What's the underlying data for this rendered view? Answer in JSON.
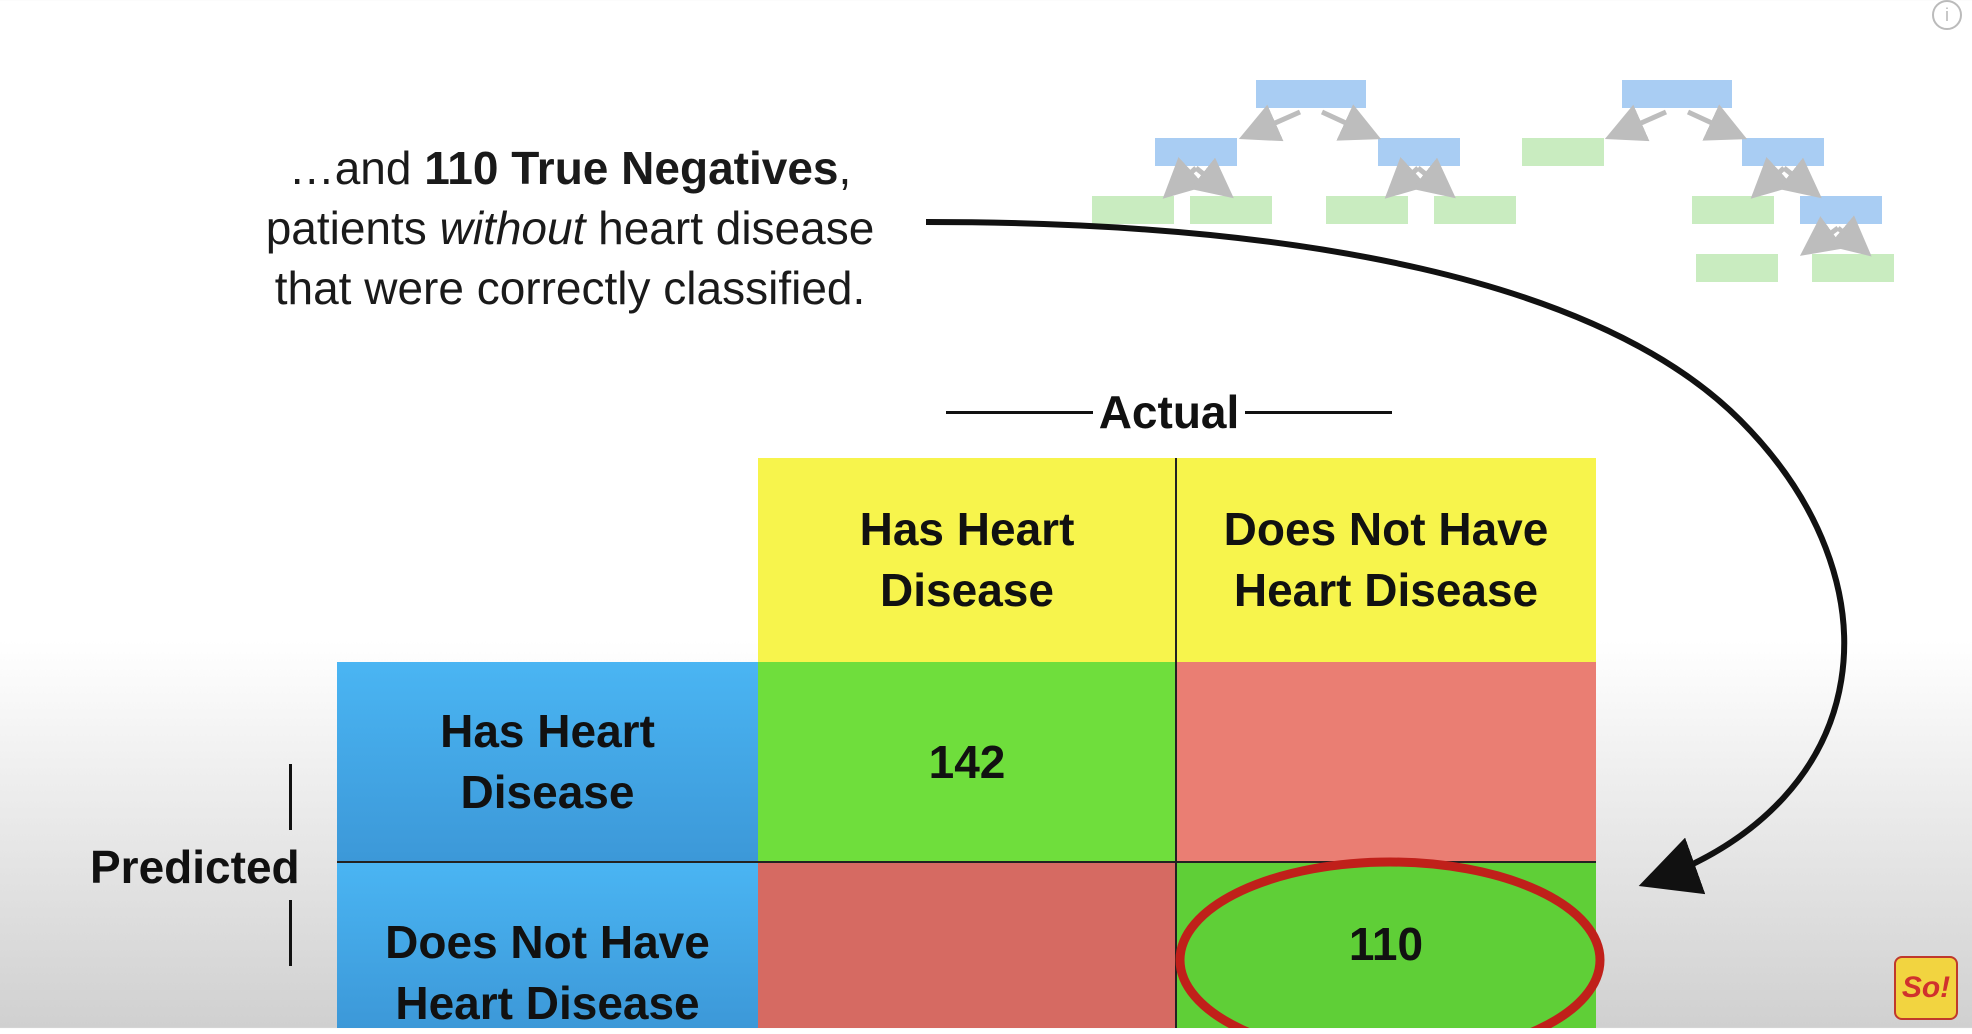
{
  "caption": {
    "line1_pre": "…and ",
    "line1_bold": "110 True Negatives",
    "line1_post": ",",
    "line2_pre": "patients ",
    "line2_italic": "without",
    "line2_post": " heart disease",
    "line3": "that were correctly classified."
  },
  "matrix": {
    "actual_label": "Actual",
    "predicted_label": "Predicted",
    "col_headers": [
      {
        "line1": "Has Heart",
        "line2": "Disease"
      },
      {
        "line1": "Does Not Have",
        "line2": "Heart Disease"
      }
    ],
    "row_headers": [
      {
        "line1": "Has Heart",
        "line2": "Disease"
      },
      {
        "line1": "Does Not Have",
        "line2": "Heart Disease"
      }
    ],
    "cells": [
      [
        "142",
        ""
      ],
      [
        "",
        "110"
      ]
    ],
    "highlighted_cell": "110"
  },
  "colors": {
    "header_yellow": "#f7f44c",
    "row_blue": "#4ab5f3",
    "correct_green": "#6fde3c",
    "incorrect_red": "#ea7e73",
    "highlight_ring": "#c0201a",
    "tree_blue": "#a9cdf3",
    "tree_green": "#c9ecc0"
  },
  "icons": {
    "info": "info-icon",
    "logo_text": "So!"
  }
}
